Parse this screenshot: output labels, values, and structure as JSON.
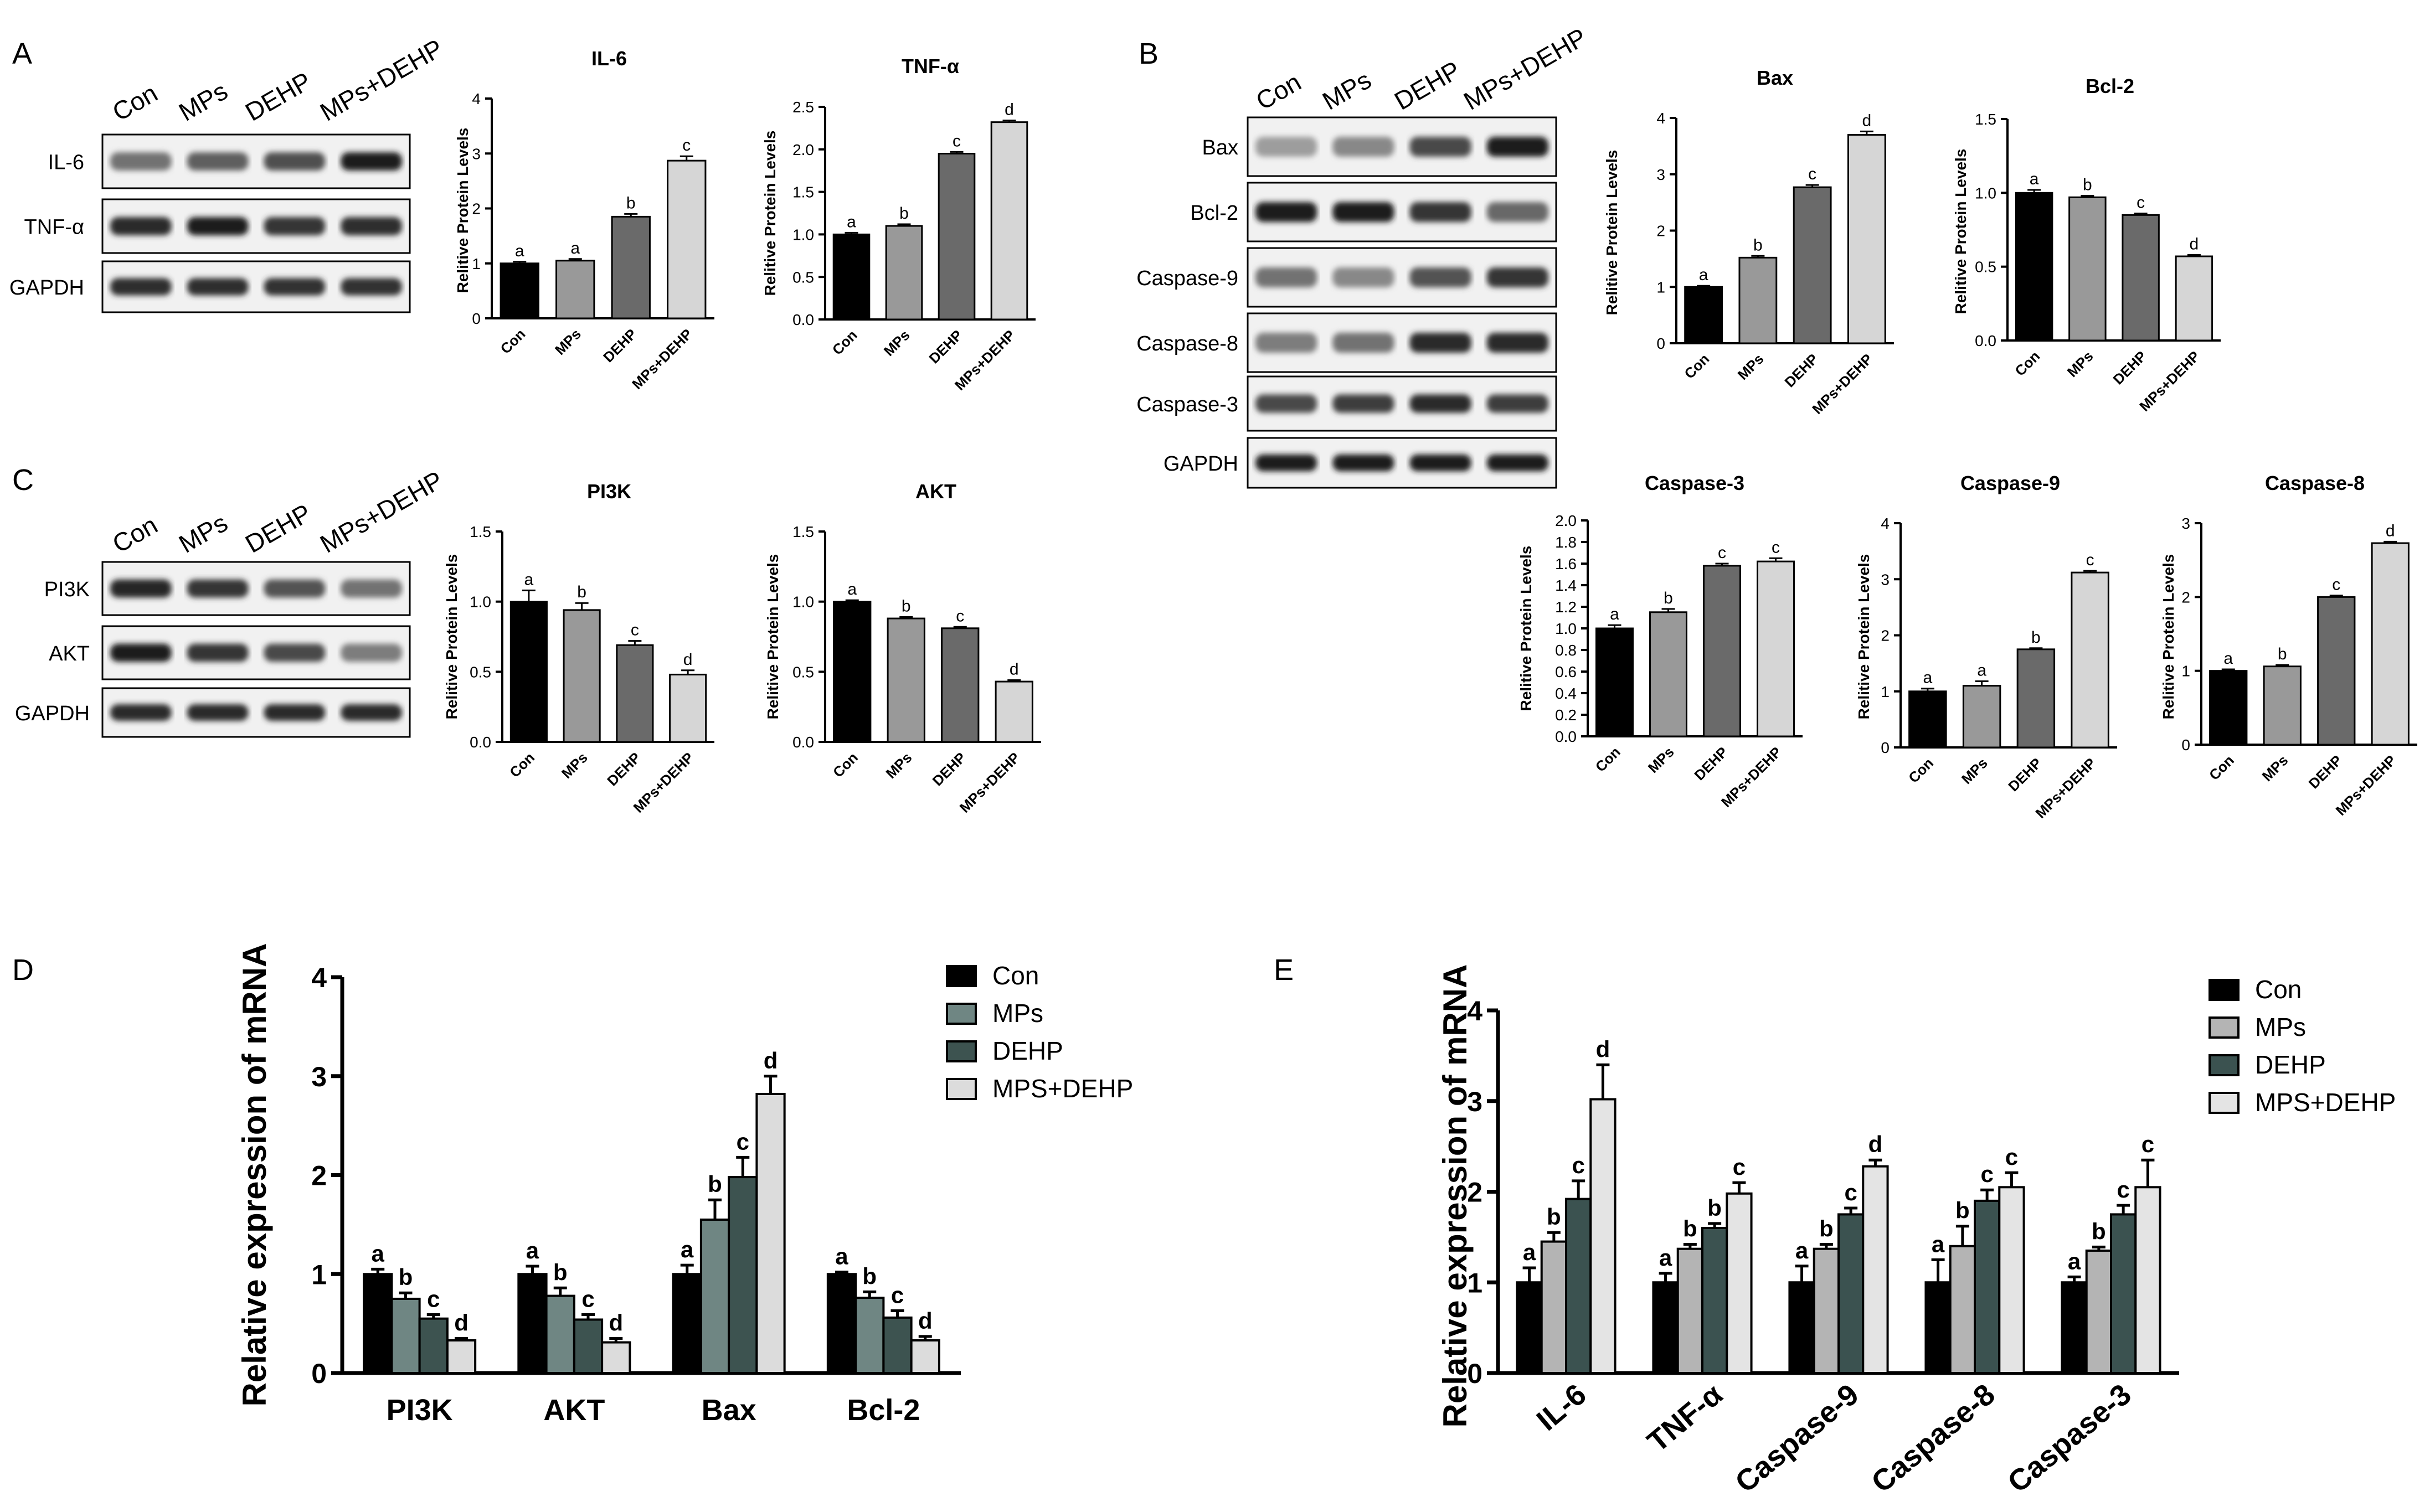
{
  "panels": {
    "A": "A",
    "B": "B",
    "C": "C",
    "D": "D",
    "E": "E"
  },
  "groups": [
    "Con",
    "MPs",
    "DEHP",
    "MPs+DEHP"
  ],
  "colors": {
    "con": "#000000",
    "mps": "#999999",
    "dehp": "#6a6a6a",
    "mpsdehp": "#d6d6d6",
    "d_mps": "#6f8683",
    "d_dehp": "#3d5350",
    "d_mpsdehp": "#dcdcdc",
    "e_mps": "#b4b4b4",
    "e_dehp": "#3b5250",
    "e_mpsdehp": "#e4e4e4"
  },
  "blots": {
    "A": {
      "lanes": [
        "Con",
        "MPs",
        "DEHP",
        "MPs+DEHP"
      ],
      "rows": [
        "IL-6",
        "TNF-α",
        "GAPDH"
      ]
    },
    "B": {
      "lanes": [
        "Con",
        "MPs",
        "DEHP",
        "MPs+DEHP"
      ],
      "rows": [
        "Bax",
        "Bcl-2",
        "Caspase-9",
        "Caspase-8",
        "Caspase-3",
        "GAPDH"
      ]
    },
    "C": {
      "lanes": [
        "Con",
        "MPs",
        "DEHP",
        "MPs+DEHP"
      ],
      "rows": [
        "PI3K",
        "AKT",
        "GAPDH"
      ]
    }
  },
  "chart_data": [
    {
      "id": "il6",
      "type": "bar",
      "title": "IL-6",
      "ylabel": "Relitive Protein Levels",
      "categories": [
        "Con",
        "MPs",
        "DEHP",
        "MPs+DEHP"
      ],
      "values": [
        1.0,
        1.05,
        1.85,
        2.87
      ],
      "errors": [
        0.03,
        0.03,
        0.05,
        0.08
      ],
      "sig": [
        "a",
        "a",
        "b",
        "c"
      ],
      "ylim": [
        0,
        4
      ],
      "ticks": [
        "0",
        "1",
        "2",
        "3",
        "4"
      ]
    },
    {
      "id": "tnf",
      "type": "bar",
      "title": "TNF-α",
      "ylabel": "Relitive Protein Levels",
      "categories": [
        "Con",
        "MPs",
        "DEHP",
        "MPs+DEHP"
      ],
      "values": [
        1.0,
        1.1,
        1.95,
        2.32
      ],
      "errors": [
        0.02,
        0.02,
        0.02,
        0.02
      ],
      "sig": [
        "a",
        "b",
        "c",
        "d"
      ],
      "ylim": [
        0,
        2.5
      ],
      "ticks": [
        "0.0",
        "0.5",
        "1.0",
        "1.5",
        "2.0",
        "2.5"
      ]
    },
    {
      "id": "bax",
      "type": "bar",
      "title": "Bax",
      "ylabel": "Relitive Protein Levels",
      "categories": [
        "Con",
        "MPs",
        "DEHP",
        "MPs+DEHP"
      ],
      "values": [
        1.0,
        1.52,
        2.77,
        3.7
      ],
      "errors": [
        0.02,
        0.03,
        0.04,
        0.06
      ],
      "sig": [
        "a",
        "b",
        "c",
        "d"
      ],
      "ylim": [
        0,
        4
      ],
      "ticks": [
        "0",
        "1",
        "2",
        "3",
        "4"
      ]
    },
    {
      "id": "bcl2",
      "type": "bar",
      "title": "Bcl-2",
      "ylabel": "Relitive Protein Levels",
      "categories": [
        "Con",
        "MPs",
        "DEHP",
        "MPs+DEHP"
      ],
      "values": [
        1.0,
        0.97,
        0.85,
        0.57
      ],
      "errors": [
        0.02,
        0.01,
        0.01,
        0.01
      ],
      "sig": [
        "a",
        "b",
        "c",
        "d"
      ],
      "ylim": [
        0,
        1.5
      ],
      "ticks": [
        "0.0",
        "0.5",
        "1.0",
        "1.5"
      ]
    },
    {
      "id": "pi3k",
      "type": "bar",
      "title": "PI3K",
      "ylabel": "Relitive Protein Levels",
      "categories": [
        "Con",
        "MPs",
        "DEHP",
        "MPs+DEHP"
      ],
      "values": [
        1.0,
        0.94,
        0.69,
        0.48
      ],
      "errors": [
        0.08,
        0.05,
        0.03,
        0.03
      ],
      "sig": [
        "a",
        "b",
        "c",
        "d"
      ],
      "ylim": [
        0,
        1.5
      ],
      "ticks": [
        "0.0",
        "0.5",
        "1.0",
        "1.5"
      ]
    },
    {
      "id": "akt",
      "type": "bar",
      "title": "AKT",
      "ylabel": "Relitive Protein Levels",
      "categories": [
        "Con",
        "MPs",
        "DEHP",
        "MPs+DEHP"
      ],
      "values": [
        1.0,
        0.88,
        0.81,
        0.43
      ],
      "errors": [
        0.01,
        0.01,
        0.01,
        0.01
      ],
      "sig": [
        "a",
        "b",
        "c",
        "d"
      ],
      "ylim": [
        0,
        1.5
      ],
      "ticks": [
        "0.0",
        "0.5",
        "1.0",
        "1.5"
      ]
    },
    {
      "id": "casp3",
      "type": "bar",
      "title": "Caspase-3",
      "ylabel": "Relitive Protein Levels",
      "categories": [
        "Con",
        "MPs",
        "DEHP",
        "MPs+DEHP"
      ],
      "values": [
        1.0,
        1.15,
        1.58,
        1.62
      ],
      "errors": [
        0.03,
        0.03,
        0.02,
        0.03
      ],
      "sig": [
        "a",
        "b",
        "c",
        "c"
      ],
      "ylim": [
        0,
        2.0
      ],
      "ticks": [
        "0.0",
        "0.2",
        "0.4",
        "0.6",
        "0.8",
        "1.0",
        "1.2",
        "1.4",
        "1.6",
        "1.8",
        "2.0"
      ]
    },
    {
      "id": "casp9",
      "type": "bar",
      "title": "Caspase-9",
      "ylabel": "Relitive Protein Levels",
      "categories": [
        "Con",
        "MPs",
        "DEHP",
        "MPs+DEHP"
      ],
      "values": [
        1.0,
        1.1,
        1.75,
        3.12
      ],
      "errors": [
        0.05,
        0.08,
        0.02,
        0.03
      ],
      "sig": [
        "a",
        "a",
        "b",
        "c"
      ],
      "ylim": [
        0,
        4
      ],
      "ticks": [
        "0",
        "1",
        "2",
        "3",
        "4"
      ]
    },
    {
      "id": "casp8",
      "type": "bar",
      "title": "Caspase-8",
      "ylabel": "Relitive Protein Levels",
      "categories": [
        "Con",
        "MPs",
        "DEHP",
        "MPs+DEHP"
      ],
      "values": [
        1.0,
        1.06,
        2.0,
        2.73
      ],
      "errors": [
        0.02,
        0.02,
        0.02,
        0.02
      ],
      "sig": [
        "a",
        "b",
        "c",
        "d"
      ],
      "ylim": [
        0,
        3
      ],
      "ticks": [
        "0",
        "1",
        "2",
        "3"
      ]
    },
    {
      "id": "D",
      "type": "bar",
      "title": "",
      "ylabel": "Relative expression of mRNA",
      "categories": [
        "PI3K",
        "AKT",
        "Bax",
        "Bcl-2"
      ],
      "legend": [
        "Con",
        "MPs",
        "DEHP",
        "MPS+DEHP"
      ],
      "ylim": [
        0,
        4
      ],
      "ticks": [
        "0",
        "1",
        "2",
        "3",
        "4"
      ],
      "series": [
        {
          "name": "Con",
          "values": [
            1.0,
            1.0,
            1.0,
            1.0
          ],
          "errors": [
            0.05,
            0.08,
            0.09,
            0.02
          ],
          "sig": [
            "a",
            "a",
            "a",
            "a"
          ]
        },
        {
          "name": "MPs",
          "values": [
            0.75,
            0.78,
            1.55,
            0.76
          ],
          "errors": [
            0.06,
            0.08,
            0.2,
            0.06
          ],
          "sig": [
            "b",
            "b",
            "b",
            "b"
          ]
        },
        {
          "name": "DEHP",
          "values": [
            0.55,
            0.54,
            1.98,
            0.56
          ],
          "errors": [
            0.04,
            0.05,
            0.2,
            0.07
          ],
          "sig": [
            "c",
            "c",
            "c",
            "c"
          ]
        },
        {
          "name": "MPS+DEHP",
          "values": [
            0.33,
            0.31,
            2.82,
            0.33
          ],
          "errors": [
            0.02,
            0.04,
            0.18,
            0.04
          ],
          "sig": [
            "d",
            "d",
            "d",
            "d"
          ]
        }
      ]
    },
    {
      "id": "E",
      "type": "bar",
      "title": "",
      "ylabel": "Relative expression of mRNA",
      "categories": [
        "IL-6",
        "TNF-α",
        "Caspase-9",
        "Caspase-8",
        "Caspase-3"
      ],
      "legend": [
        "Con",
        "MPs",
        "DEHP",
        "MPS+DEHP"
      ],
      "ylim": [
        0,
        4
      ],
      "ticks": [
        "0",
        "1",
        "2",
        "3",
        "4"
      ],
      "series": [
        {
          "name": "Con",
          "values": [
            1.0,
            1.0,
            1.0,
            1.0,
            1.0
          ],
          "errors": [
            0.16,
            0.1,
            0.18,
            0.25,
            0.06
          ],
          "sig": [
            "a",
            "a",
            "a",
            "a",
            "a"
          ]
        },
        {
          "name": "MPs",
          "values": [
            1.45,
            1.37,
            1.37,
            1.4,
            1.35
          ],
          "errors": [
            0.1,
            0.05,
            0.05,
            0.22,
            0.04
          ],
          "sig": [
            "b",
            "b",
            "b",
            "b",
            "b"
          ]
        },
        {
          "name": "DEHP",
          "values": [
            1.92,
            1.6,
            1.75,
            1.9,
            1.75
          ],
          "errors": [
            0.2,
            0.05,
            0.07,
            0.12,
            0.1
          ],
          "sig": [
            "c",
            "b",
            "c",
            "c",
            "c"
          ]
        },
        {
          "name": "MPS+DEHP",
          "values": [
            3.02,
            1.98,
            2.28,
            2.05,
            2.05
          ],
          "errors": [
            0.38,
            0.12,
            0.07,
            0.16,
            0.3
          ],
          "sig": [
            "d",
            "c",
            "d",
            "c",
            "c"
          ]
        }
      ]
    }
  ]
}
